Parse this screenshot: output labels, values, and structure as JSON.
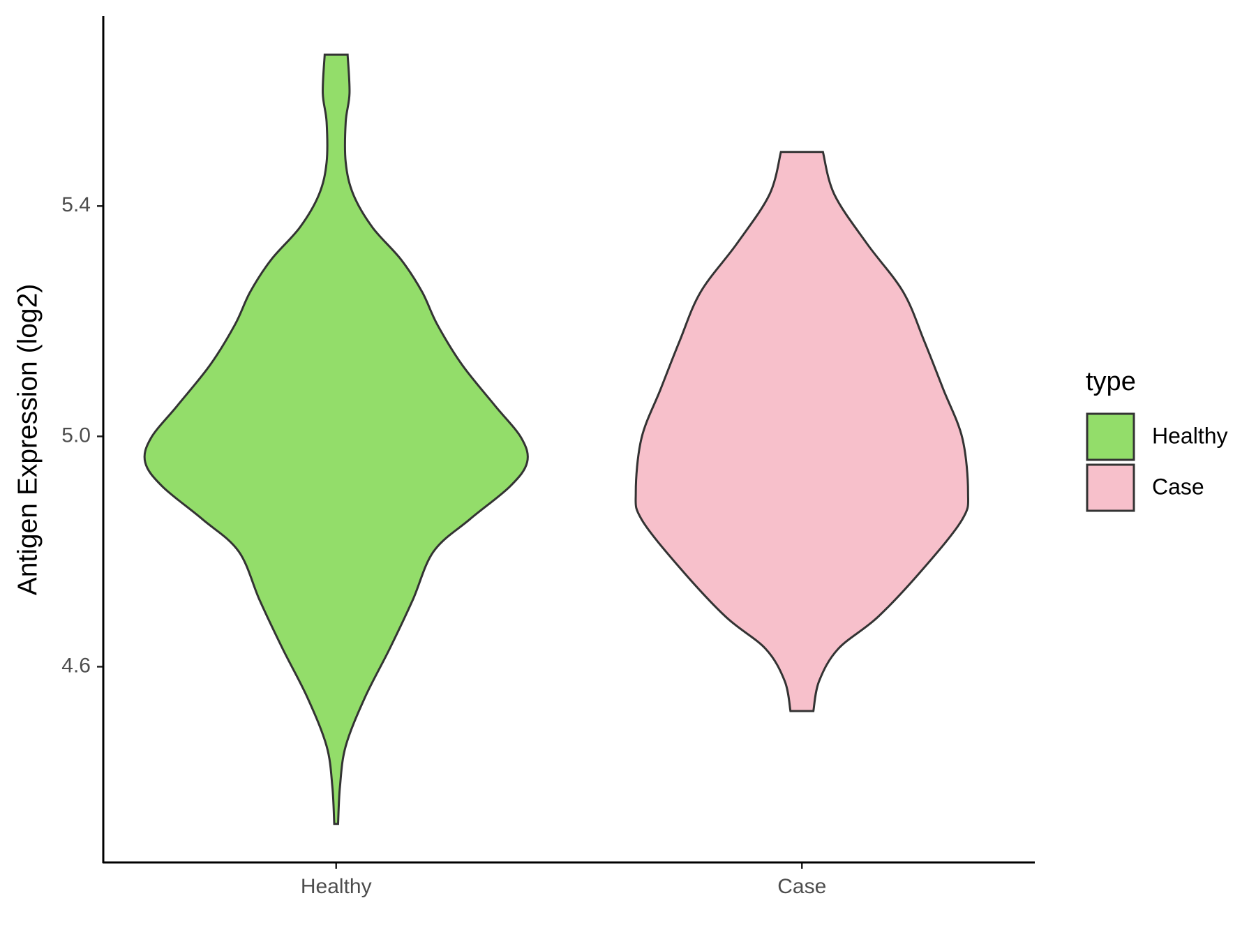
{
  "chart_data": {
    "type": "violin",
    "y_label": "Antigen Expression (log2)",
    "legend_title": "type",
    "categories": [
      "Healthy",
      "Case"
    ],
    "series": [
      {
        "name": "Healthy",
        "color": "#93dd6a",
        "y": [
          5.663,
          5.596,
          5.546,
          5.476,
          5.42,
          5.363,
          5.307,
          5.251,
          5.194,
          5.124,
          5.054,
          4.997,
          4.955,
          4.913,
          4.856,
          4.8,
          4.715,
          4.631,
          4.546,
          4.462,
          4.392,
          4.327
        ],
        "density": [
          0.06,
          0.07,
          0.05,
          0.05,
          0.09,
          0.19,
          0.34,
          0.45,
          0.53,
          0.66,
          0.83,
          0.97,
          1.0,
          0.91,
          0.7,
          0.51,
          0.4,
          0.28,
          0.15,
          0.05,
          0.02,
          0.01
        ]
      },
      {
        "name": "Case",
        "color": "#f7c0cb",
        "y": [
          5.494,
          5.42,
          5.335,
          5.251,
          5.166,
          5.082,
          4.997,
          4.903,
          4.856,
          4.772,
          4.687,
          4.631,
          4.575,
          4.523
        ],
        "density": [
          0.11,
          0.17,
          0.34,
          0.53,
          0.64,
          0.74,
          0.84,
          0.87,
          0.84,
          0.64,
          0.4,
          0.19,
          0.09,
          0.06
        ]
      }
    ],
    "ylim": [
      4.26,
      5.73
    ],
    "yticks": [
      4.6,
      {
        "value": 5,
        "label": "5.0"
      },
      5.4
    ]
  }
}
